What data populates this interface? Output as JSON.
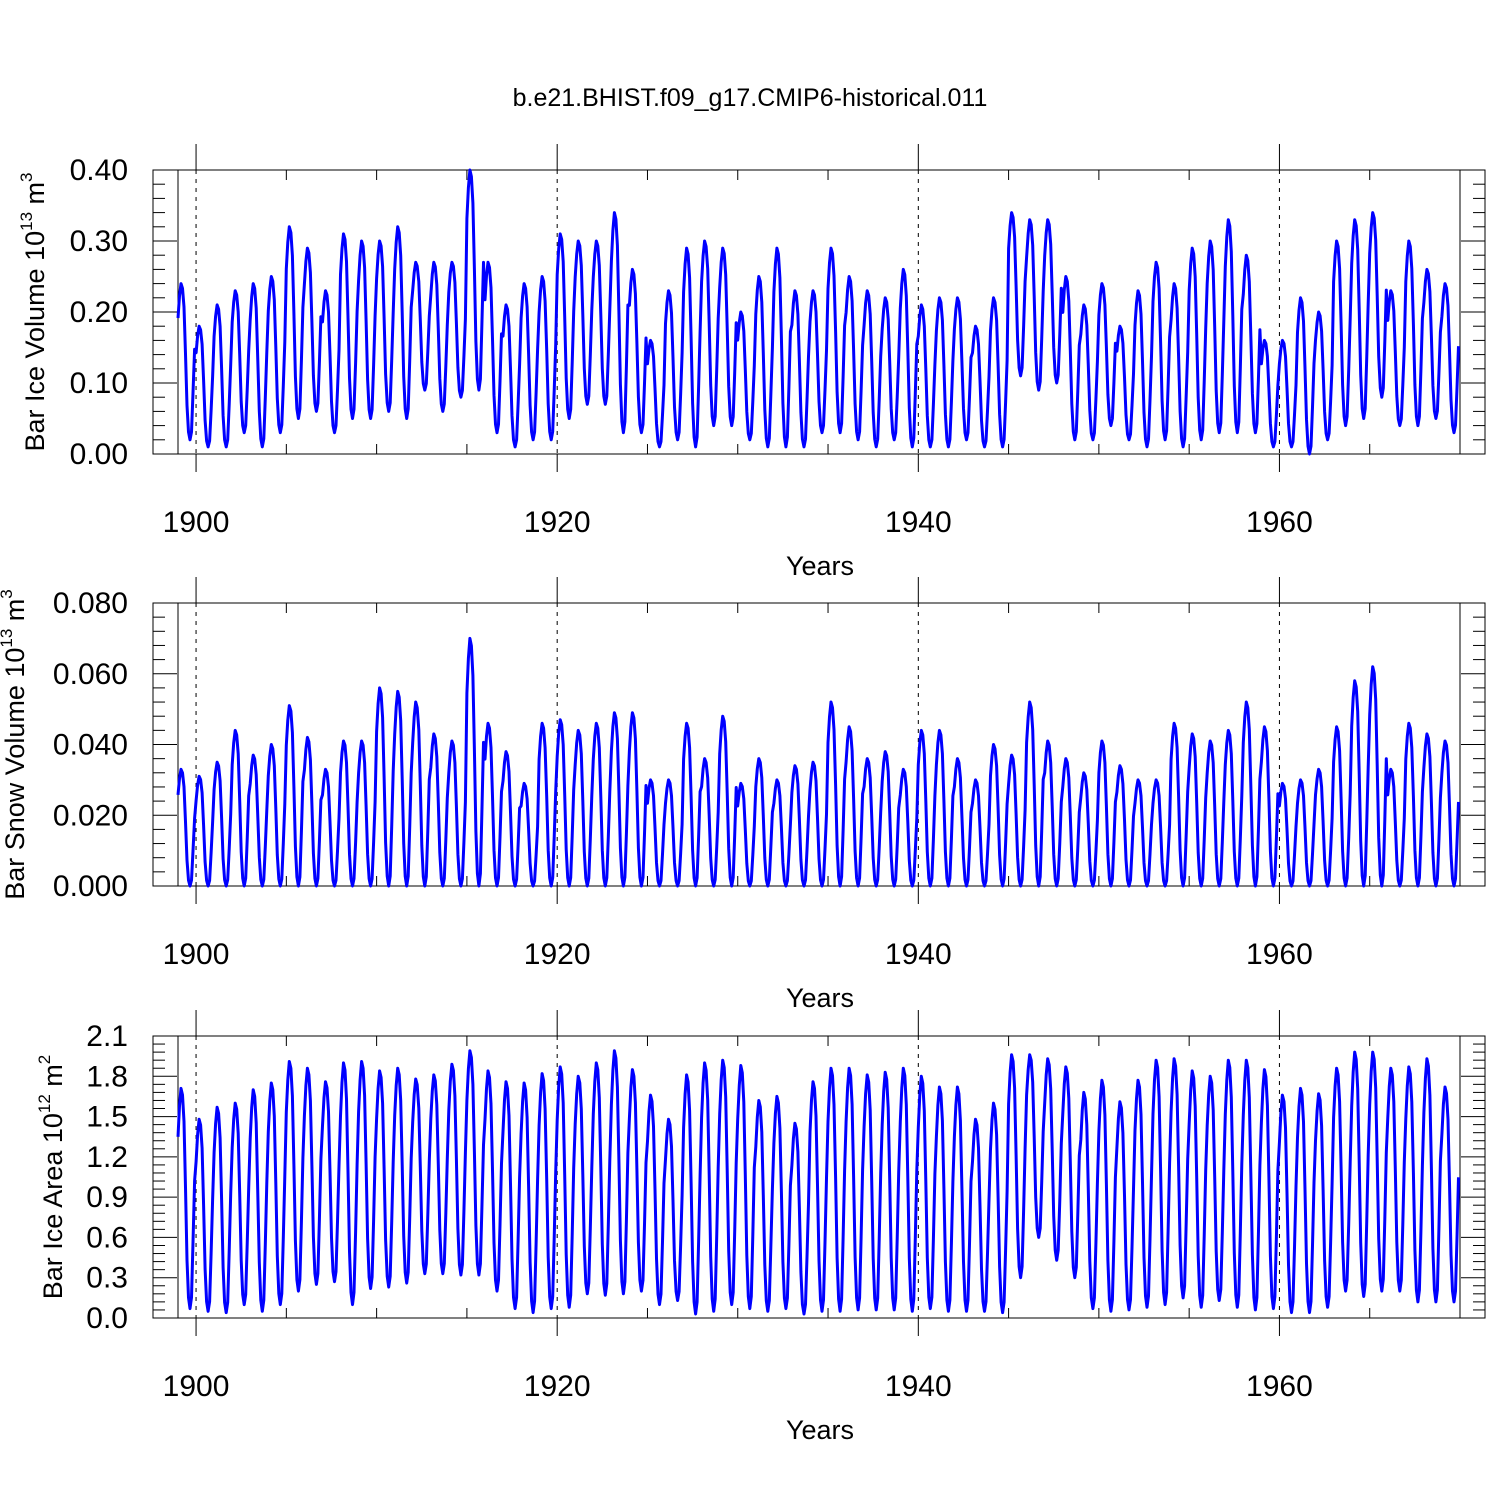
{
  "figure": {
    "title": "b.e21.BHIST.f09_g17.CMIP6-historical.011",
    "line_color": "#0000ff"
  },
  "chart_data": [
    {
      "type": "line",
      "title": "b.e21.BHIST.f09_g17.CMIP6-historical.011",
      "xlabel": "Years",
      "ylabel": "Bar Ice Volume 10^13 m^3",
      "ylabel_parts": {
        "main": "Bar Ice Volume 10",
        "exp1": "13",
        "mid": " m",
        "exp2": "3"
      },
      "xlim": [
        1899,
        1970
      ],
      "ylim": [
        0.0,
        0.4
      ],
      "xticks": [
        1900,
        1920,
        1940,
        1960
      ],
      "xtick_labels": [
        "1900",
        "1920",
        "1940",
        "1960"
      ],
      "yticks": [
        0.0,
        0.1,
        0.2,
        0.3,
        0.4
      ],
      "ytick_labels": [
        "0.00",
        "0.10",
        "0.20",
        "0.30",
        "0.40"
      ],
      "grid": "dashed vertical at major x ticks",
      "series": [
        {
          "cycle": "annual",
          "years": [
            1899,
            1900,
            1901,
            1902,
            1903,
            1904,
            1905,
            1906,
            1907,
            1908,
            1909,
            1910,
            1911,
            1912,
            1913,
            1914,
            1915,
            1916,
            1917,
            1918,
            1919,
            1920,
            1921,
            1922,
            1923,
            1924,
            1925,
            1926,
            1927,
            1928,
            1929,
            1930,
            1931,
            1932,
            1933,
            1934,
            1935,
            1936,
            1937,
            1938,
            1939,
            1940,
            1941,
            1942,
            1943,
            1944,
            1945,
            1946,
            1947,
            1948,
            1949,
            1950,
            1951,
            1952,
            1953,
            1954,
            1955,
            1956,
            1957,
            1958,
            1959,
            1960,
            1961,
            1962,
            1963,
            1964,
            1965,
            1966,
            1967,
            1968,
            1969
          ],
          "annual_max": [
            0.24,
            0.18,
            0.21,
            0.23,
            0.24,
            0.25,
            0.32,
            0.29,
            0.23,
            0.31,
            0.3,
            0.3,
            0.32,
            0.27,
            0.27,
            0.27,
            0.4,
            0.27,
            0.21,
            0.24,
            0.25,
            0.31,
            0.3,
            0.3,
            0.34,
            0.26,
            0.16,
            0.23,
            0.29,
            0.3,
            0.29,
            0.2,
            0.25,
            0.29,
            0.23,
            0.23,
            0.29,
            0.25,
            0.23,
            0.22,
            0.26,
            0.21,
            0.22,
            0.22,
            0.18,
            0.22,
            0.34,
            0.33,
            0.33,
            0.25,
            0.21,
            0.24,
            0.18,
            0.23,
            0.27,
            0.24,
            0.29,
            0.3,
            0.33,
            0.28,
            0.16,
            0.16,
            0.22,
            0.2,
            0.3,
            0.33,
            0.34,
            0.23,
            0.3,
            0.26,
            0.24
          ],
          "annual_min": [
            0.02,
            0.01,
            0.01,
            0.03,
            0.01,
            0.03,
            0.05,
            0.06,
            0.03,
            0.05,
            0.05,
            0.06,
            0.05,
            0.09,
            0.06,
            0.08,
            0.09,
            0.03,
            0.01,
            0.02,
            0.02,
            0.05,
            0.07,
            0.07,
            0.03,
            0.03,
            0.01,
            0.02,
            0.01,
            0.04,
            0.04,
            0.02,
            0.01,
            0.01,
            0.01,
            0.03,
            0.03,
            0.02,
            0.01,
            0.02,
            0.01,
            0.01,
            0.01,
            0.02,
            0.01,
            0.01,
            0.11,
            0.09,
            0.1,
            0.02,
            0.02,
            0.04,
            0.02,
            0.01,
            0.02,
            0.01,
            0.02,
            0.03,
            0.03,
            0.03,
            0.01,
            0.01,
            0.0,
            0.02,
            0.04,
            0.05,
            0.08,
            0.04,
            0.04,
            0.05,
            0.03
          ]
        }
      ]
    },
    {
      "type": "line",
      "xlabel": "Years",
      "ylabel": "Bar Snow Volume 10^13 m^3",
      "ylabel_parts": {
        "main": "Bar Snow Volume 10",
        "exp1": "13",
        "mid": " m",
        "exp2": "3"
      },
      "xlim": [
        1899,
        1970
      ],
      "ylim": [
        0.0,
        0.08
      ],
      "xticks": [
        1900,
        1920,
        1940,
        1960
      ],
      "xtick_labels": [
        "1900",
        "1920",
        "1940",
        "1960"
      ],
      "yticks": [
        0.0,
        0.02,
        0.04,
        0.06,
        0.08
      ],
      "ytick_labels": [
        "0.000",
        "0.020",
        "0.040",
        "0.060",
        "0.080"
      ],
      "grid": "dashed vertical at major x ticks",
      "series": [
        {
          "cycle": "annual",
          "years": [
            1899,
            1900,
            1901,
            1902,
            1903,
            1904,
            1905,
            1906,
            1907,
            1908,
            1909,
            1910,
            1911,
            1912,
            1913,
            1914,
            1915,
            1916,
            1917,
            1918,
            1919,
            1920,
            1921,
            1922,
            1923,
            1924,
            1925,
            1926,
            1927,
            1928,
            1929,
            1930,
            1931,
            1932,
            1933,
            1934,
            1935,
            1936,
            1937,
            1938,
            1939,
            1940,
            1941,
            1942,
            1943,
            1944,
            1945,
            1946,
            1947,
            1948,
            1949,
            1950,
            1951,
            1952,
            1953,
            1954,
            1955,
            1956,
            1957,
            1958,
            1959,
            1960,
            1961,
            1962,
            1963,
            1964,
            1965,
            1966,
            1967,
            1968,
            1969
          ],
          "annual_max": [
            0.033,
            0.031,
            0.035,
            0.044,
            0.037,
            0.04,
            0.051,
            0.042,
            0.033,
            0.041,
            0.041,
            0.056,
            0.055,
            0.052,
            0.043,
            0.041,
            0.07,
            0.046,
            0.038,
            0.029,
            0.046,
            0.047,
            0.044,
            0.046,
            0.049,
            0.049,
            0.03,
            0.03,
            0.046,
            0.036,
            0.048,
            0.029,
            0.036,
            0.03,
            0.034,
            0.035,
            0.052,
            0.045,
            0.036,
            0.038,
            0.033,
            0.044,
            0.044,
            0.036,
            0.03,
            0.04,
            0.037,
            0.052,
            0.041,
            0.036,
            0.032,
            0.041,
            0.034,
            0.03,
            0.03,
            0.046,
            0.043,
            0.041,
            0.044,
            0.052,
            0.045,
            0.029,
            0.03,
            0.033,
            0.045,
            0.058,
            0.062,
            0.033,
            0.046,
            0.043,
            0.041
          ],
          "annual_min": [
            0.0,
            0.0,
            0.0,
            0.0,
            0.0,
            0.0,
            0.0,
            0.0,
            0.0,
            0.0,
            0.0,
            0.0,
            0.0,
            0.0,
            0.0,
            0.0,
            0.0,
            0.0,
            0.0,
            0.0,
            0.0,
            0.0,
            0.0,
            0.0,
            0.0,
            0.0,
            0.0,
            0.0,
            0.0,
            0.0,
            0.0,
            0.0,
            0.0,
            0.0,
            0.0,
            0.0,
            0.0,
            0.0,
            0.0,
            0.0,
            0.0,
            0.0,
            0.0,
            0.0,
            0.0,
            0.0,
            0.0,
            0.0,
            0.0,
            0.0,
            0.0,
            0.0,
            0.0,
            0.0,
            0.0,
            0.0,
            0.0,
            0.0,
            0.0,
            0.0,
            0.0,
            0.0,
            0.0,
            0.0,
            0.0,
            0.0,
            0.0,
            0.0,
            0.0,
            0.0,
            0.0
          ]
        }
      ]
    },
    {
      "type": "line",
      "xlabel": "Years",
      "ylabel": "Bar Ice Area 10^12 m^2",
      "ylabel_parts": {
        "main": "Bar Ice Area 10",
        "exp1": "12",
        "mid": " m",
        "exp2": "2"
      },
      "xlim": [
        1899,
        1970
      ],
      "ylim": [
        0.0,
        2.1
      ],
      "xticks": [
        1900,
        1920,
        1940,
        1960
      ],
      "xtick_labels": [
        "1900",
        "1920",
        "1940",
        "1960"
      ],
      "yticks": [
        0.0,
        0.3,
        0.6,
        0.9,
        1.2,
        1.5,
        1.8,
        2.1
      ],
      "ytick_labels": [
        "0.0",
        "0.3",
        "0.6",
        "0.9",
        "1.2",
        "1.5",
        "1.8",
        "2.1"
      ],
      "grid": "dashed vertical at major x ticks",
      "series": [
        {
          "cycle": "annual",
          "years": [
            1899,
            1900,
            1901,
            1902,
            1903,
            1904,
            1905,
            1906,
            1907,
            1908,
            1909,
            1910,
            1911,
            1912,
            1913,
            1914,
            1915,
            1916,
            1917,
            1918,
            1919,
            1920,
            1921,
            1922,
            1923,
            1924,
            1925,
            1926,
            1927,
            1928,
            1929,
            1930,
            1931,
            1932,
            1933,
            1934,
            1935,
            1936,
            1937,
            1938,
            1939,
            1940,
            1941,
            1942,
            1943,
            1944,
            1945,
            1946,
            1947,
            1948,
            1949,
            1950,
            1951,
            1952,
            1953,
            1954,
            1955,
            1956,
            1957,
            1958,
            1959,
            1960,
            1961,
            1962,
            1963,
            1964,
            1965,
            1966,
            1967,
            1968,
            1969
          ],
          "annual_max": [
            1.71,
            1.48,
            1.57,
            1.6,
            1.7,
            1.75,
            1.91,
            1.86,
            1.76,
            1.9,
            1.91,
            1.84,
            1.86,
            1.78,
            1.81,
            1.89,
            1.99,
            1.84,
            1.76,
            1.75,
            1.82,
            1.87,
            1.8,
            1.9,
            1.99,
            1.85,
            1.66,
            1.48,
            1.81,
            1.9,
            1.92,
            1.88,
            1.62,
            1.65,
            1.45,
            1.76,
            1.86,
            1.86,
            1.81,
            1.83,
            1.86,
            1.8,
            1.72,
            1.72,
            1.48,
            1.6,
            1.96,
            1.96,
            1.93,
            1.87,
            1.68,
            1.77,
            1.61,
            1.77,
            1.92,
            1.93,
            1.84,
            1.8,
            1.92,
            1.92,
            1.85,
            1.66,
            1.71,
            1.67,
            1.86,
            1.98,
            1.98,
            1.86,
            1.87,
            1.93,
            1.72
          ],
          "annual_min": [
            0.07,
            0.05,
            0.04,
            0.1,
            0.05,
            0.1,
            0.2,
            0.25,
            0.27,
            0.1,
            0.22,
            0.23,
            0.26,
            0.33,
            0.33,
            0.32,
            0.32,
            0.2,
            0.07,
            0.04,
            0.07,
            0.08,
            0.18,
            0.17,
            0.18,
            0.2,
            0.1,
            0.13,
            0.03,
            0.05,
            0.1,
            0.07,
            0.05,
            0.07,
            0.03,
            0.05,
            0.05,
            0.06,
            0.06,
            0.06,
            0.05,
            0.07,
            0.05,
            0.05,
            0.05,
            0.04,
            0.3,
            0.6,
            0.43,
            0.3,
            0.07,
            0.05,
            0.06,
            0.08,
            0.1,
            0.15,
            0.08,
            0.13,
            0.08,
            0.06,
            0.07,
            0.04,
            0.04,
            0.08,
            0.2,
            0.16,
            0.2,
            0.2,
            0.12,
            0.12,
            0.12
          ]
        }
      ]
    }
  ]
}
